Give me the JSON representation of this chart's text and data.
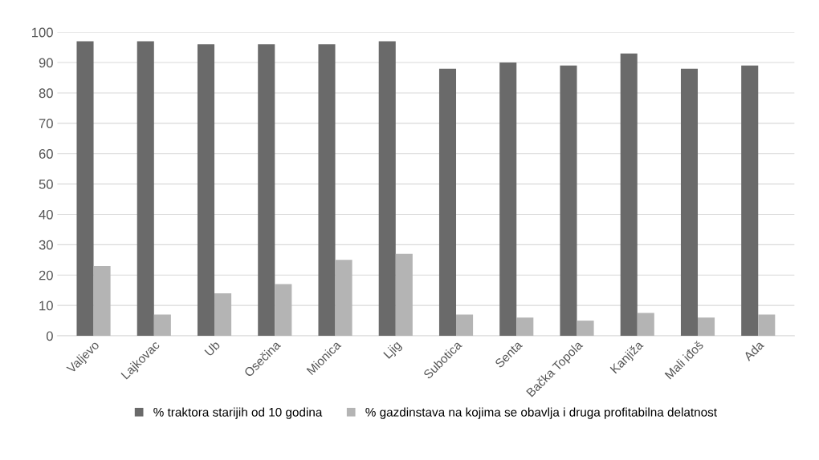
{
  "chart_data": {
    "type": "bar",
    "categories": [
      "Valjevo",
      "Lajkovac",
      "Ub",
      "Osečina",
      "Mionica",
      "Ljig",
      "Subotica",
      "Senta",
      "Bačka Topola",
      "Kanjiža",
      "Mali iđoš",
      "Ada"
    ],
    "series": [
      {
        "name": "% traktora starijih od 10 godina",
        "color": "#6a6a6a",
        "values": [
          97,
          97,
          96,
          96,
          96,
          97,
          88,
          90,
          89,
          93,
          88,
          89
        ]
      },
      {
        "name": "% gazdinstava na kojima se obavlja i druga profitabilna delatnost",
        "color": "#b4b4b4",
        "values": [
          23,
          7,
          14,
          17,
          25,
          27,
          7,
          6,
          5,
          7.5,
          6,
          7
        ]
      }
    ],
    "ylim": [
      0,
      100
    ],
    "yticks": [
      0,
      10,
      20,
      30,
      40,
      50,
      60,
      70,
      80,
      90,
      100
    ],
    "grid": "y",
    "legend": "bottom"
  }
}
